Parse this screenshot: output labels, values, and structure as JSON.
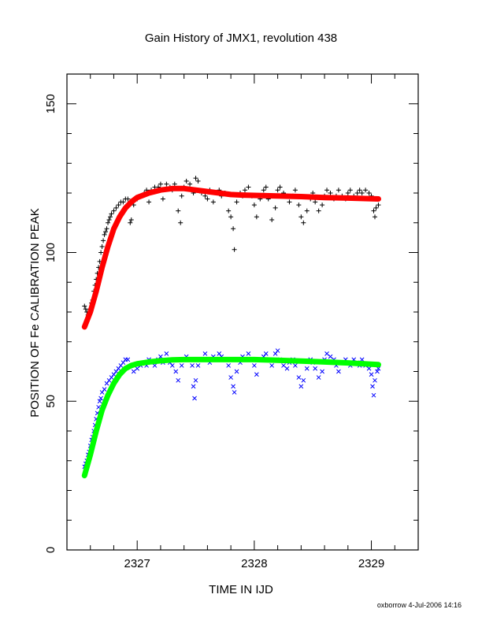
{
  "chart_data": {
    "type": "scatter",
    "title": "Gain History of JMX1, revolution 438",
    "xlabel": "TIME IN IJD",
    "ylabel": "POSITION OF Fe CALIBRATION PEAK",
    "footer": "oxborrow  4-Jul-2006 14:16",
    "xlim": [
      2326.4,
      2329.4
    ],
    "ylim": [
      0,
      160
    ],
    "x_ticks": [
      2327,
      2328,
      2329
    ],
    "y_ticks": [
      0,
      50,
      100,
      150
    ],
    "grid": false,
    "legend": "none",
    "series": [
      {
        "marker": "plus",
        "color": "#000000",
        "points": [
          [
            2326.55,
            82
          ],
          [
            2326.56,
            81
          ],
          [
            2326.57,
            80
          ],
          [
            2326.58,
            79
          ],
          [
            2326.59,
            80
          ],
          [
            2326.6,
            81
          ],
          [
            2326.61,
            83
          ],
          [
            2326.62,
            84
          ],
          [
            2326.63,
            87
          ],
          [
            2326.64,
            89
          ],
          [
            2326.65,
            91
          ],
          [
            2326.66,
            93
          ],
          [
            2326.67,
            95
          ],
          [
            2326.68,
            97
          ],
          [
            2326.69,
            100
          ],
          [
            2326.7,
            102
          ],
          [
            2326.71,
            104
          ],
          [
            2326.72,
            106
          ],
          [
            2326.73,
            107
          ],
          [
            2326.74,
            108
          ],
          [
            2326.75,
            110
          ],
          [
            2326.76,
            111
          ],
          [
            2326.77,
            112
          ],
          [
            2326.78,
            113
          ],
          [
            2326.8,
            114
          ],
          [
            2326.82,
            115
          ],
          [
            2326.84,
            116
          ],
          [
            2326.86,
            117
          ],
          [
            2326.88,
            117
          ],
          [
            2326.9,
            118
          ],
          [
            2326.92,
            118
          ],
          [
            2326.94,
            110
          ],
          [
            2326.95,
            111
          ],
          [
            2326.97,
            116
          ],
          [
            2327.0,
            118
          ],
          [
            2327.03,
            119
          ],
          [
            2327.06,
            120
          ],
          [
            2327.08,
            121
          ],
          [
            2327.1,
            117
          ],
          [
            2327.12,
            121
          ],
          [
            2327.15,
            122
          ],
          [
            2327.18,
            122
          ],
          [
            2327.2,
            123
          ],
          [
            2327.22,
            118
          ],
          [
            2327.25,
            123
          ],
          [
            2327.28,
            122
          ],
          [
            2327.3,
            121
          ],
          [
            2327.32,
            123
          ],
          [
            2327.35,
            114
          ],
          [
            2327.37,
            110
          ],
          [
            2327.38,
            119
          ],
          [
            2327.4,
            122
          ],
          [
            2327.42,
            124
          ],
          [
            2327.45,
            123
          ],
          [
            2327.48,
            120
          ],
          [
            2327.5,
            125
          ],
          [
            2327.52,
            124
          ],
          [
            2327.55,
            120
          ],
          [
            2327.58,
            119
          ],
          [
            2327.6,
            118
          ],
          [
            2327.62,
            121
          ],
          [
            2327.65,
            117
          ],
          [
            2327.68,
            120
          ],
          [
            2327.7,
            121
          ],
          [
            2327.72,
            119
          ],
          [
            2327.75,
            120
          ],
          [
            2327.78,
            114
          ],
          [
            2327.8,
            112
          ],
          [
            2327.82,
            108
          ],
          [
            2327.83,
            101
          ],
          [
            2327.85,
            117
          ],
          [
            2327.88,
            120
          ],
          [
            2327.9,
            119
          ],
          [
            2327.92,
            121
          ],
          [
            2327.95,
            122
          ],
          [
            2327.98,
            119
          ],
          [
            2328.0,
            116
          ],
          [
            2328.02,
            112
          ],
          [
            2328.05,
            118
          ],
          [
            2328.08,
            121
          ],
          [
            2328.1,
            122
          ],
          [
            2328.12,
            118
          ],
          [
            2328.15,
            111
          ],
          [
            2328.18,
            115
          ],
          [
            2328.2,
            121
          ],
          [
            2328.22,
            122
          ],
          [
            2328.25,
            120
          ],
          [
            2328.28,
            119
          ],
          [
            2328.3,
            117
          ],
          [
            2328.33,
            119
          ],
          [
            2328.35,
            121
          ],
          [
            2328.38,
            116
          ],
          [
            2328.4,
            112
          ],
          [
            2328.42,
            110
          ],
          [
            2328.45,
            114
          ],
          [
            2328.48,
            118
          ],
          [
            2328.5,
            120
          ],
          [
            2328.52,
            117
          ],
          [
            2328.55,
            114
          ],
          [
            2328.58,
            116
          ],
          [
            2328.6,
            119
          ],
          [
            2328.62,
            121
          ],
          [
            2328.65,
            120
          ],
          [
            2328.68,
            118
          ],
          [
            2328.7,
            119
          ],
          [
            2328.72,
            121
          ],
          [
            2328.75,
            119
          ],
          [
            2328.78,
            118
          ],
          [
            2328.8,
            120
          ],
          [
            2328.82,
            121
          ],
          [
            2328.85,
            119
          ],
          [
            2328.88,
            120
          ],
          [
            2328.9,
            121
          ],
          [
            2328.92,
            120
          ],
          [
            2328.95,
            121
          ],
          [
            2328.98,
            120
          ],
          [
            2329.0,
            119
          ],
          [
            2329.02,
            114
          ],
          [
            2329.03,
            112
          ],
          [
            2329.04,
            115
          ],
          [
            2329.06,
            116
          ]
        ]
      },
      {
        "marker": "cross",
        "color": "#0000ff",
        "points": [
          [
            2326.55,
            28
          ],
          [
            2326.56,
            29
          ],
          [
            2326.57,
            30
          ],
          [
            2326.58,
            32
          ],
          [
            2326.59,
            33
          ],
          [
            2326.6,
            35
          ],
          [
            2326.61,
            37
          ],
          [
            2326.62,
            38
          ],
          [
            2326.63,
            40
          ],
          [
            2326.64,
            42
          ],
          [
            2326.65,
            44
          ],
          [
            2326.66,
            46
          ],
          [
            2326.67,
            48
          ],
          [
            2326.68,
            50
          ],
          [
            2326.69,
            51
          ],
          [
            2326.7,
            53
          ],
          [
            2326.72,
            54
          ],
          [
            2326.74,
            56
          ],
          [
            2326.76,
            57
          ],
          [
            2326.78,
            58
          ],
          [
            2326.8,
            59
          ],
          [
            2326.82,
            60
          ],
          [
            2326.84,
            61
          ],
          [
            2326.86,
            62
          ],
          [
            2326.88,
            63
          ],
          [
            2326.9,
            64
          ],
          [
            2326.92,
            64
          ],
          [
            2326.95,
            62
          ],
          [
            2326.97,
            60
          ],
          [
            2327.0,
            61
          ],
          [
            2327.03,
            62
          ],
          [
            2327.05,
            63
          ],
          [
            2327.08,
            62
          ],
          [
            2327.1,
            64
          ],
          [
            2327.12,
            63
          ],
          [
            2327.15,
            62
          ],
          [
            2327.18,
            64
          ],
          [
            2327.2,
            65
          ],
          [
            2327.22,
            63
          ],
          [
            2327.25,
            66
          ],
          [
            2327.28,
            63
          ],
          [
            2327.3,
            62
          ],
          [
            2327.33,
            60
          ],
          [
            2327.35,
            57
          ],
          [
            2327.38,
            62
          ],
          [
            2327.4,
            64
          ],
          [
            2327.42,
            65
          ],
          [
            2327.45,
            64
          ],
          [
            2327.47,
            62
          ],
          [
            2327.48,
            55
          ],
          [
            2327.49,
            51
          ],
          [
            2327.5,
            57
          ],
          [
            2327.52,
            62
          ],
          [
            2327.55,
            64
          ],
          [
            2327.58,
            66
          ],
          [
            2327.6,
            64
          ],
          [
            2327.62,
            63
          ],
          [
            2327.65,
            65
          ],
          [
            2327.68,
            64
          ],
          [
            2327.7,
            66
          ],
          [
            2327.72,
            65
          ],
          [
            2327.75,
            64
          ],
          [
            2327.78,
            62
          ],
          [
            2327.8,
            58
          ],
          [
            2327.82,
            55
          ],
          [
            2327.83,
            53
          ],
          [
            2327.85,
            60
          ],
          [
            2327.88,
            63
          ],
          [
            2327.9,
            65
          ],
          [
            2327.92,
            64
          ],
          [
            2327.95,
            66
          ],
          [
            2327.98,
            64
          ],
          [
            2328.0,
            62
          ],
          [
            2328.02,
            59
          ],
          [
            2328.05,
            64
          ],
          [
            2328.08,
            65
          ],
          [
            2328.1,
            66
          ],
          [
            2328.12,
            64
          ],
          [
            2328.15,
            62
          ],
          [
            2328.18,
            66
          ],
          [
            2328.2,
            67
          ],
          [
            2328.22,
            64
          ],
          [
            2328.25,
            62
          ],
          [
            2328.28,
            61
          ],
          [
            2328.3,
            63
          ],
          [
            2328.33,
            64
          ],
          [
            2328.35,
            62
          ],
          [
            2328.38,
            58
          ],
          [
            2328.4,
            55
          ],
          [
            2328.42,
            57
          ],
          [
            2328.45,
            61
          ],
          [
            2328.48,
            64
          ],
          [
            2328.5,
            63
          ],
          [
            2328.52,
            61
          ],
          [
            2328.55,
            58
          ],
          [
            2328.58,
            60
          ],
          [
            2328.6,
            64
          ],
          [
            2328.62,
            66
          ],
          [
            2328.65,
            65
          ],
          [
            2328.68,
            64
          ],
          [
            2328.7,
            62
          ],
          [
            2328.72,
            60
          ],
          [
            2328.75,
            63
          ],
          [
            2328.78,
            64
          ],
          [
            2328.8,
            63
          ],
          [
            2328.82,
            62
          ],
          [
            2328.85,
            64
          ],
          [
            2328.88,
            63
          ],
          [
            2328.9,
            62
          ],
          [
            2328.92,
            64
          ],
          [
            2328.95,
            62
          ],
          [
            2328.98,
            61
          ],
          [
            2329.0,
            59
          ],
          [
            2329.01,
            55
          ],
          [
            2329.02,
            52
          ],
          [
            2329.03,
            57
          ],
          [
            2329.05,
            60
          ],
          [
            2329.06,
            61
          ]
        ]
      }
    ],
    "fits": [
      {
        "color": "#ff0000",
        "points": [
          [
            2326.55,
            75
          ],
          [
            2326.6,
            80
          ],
          [
            2326.65,
            87
          ],
          [
            2326.7,
            95
          ],
          [
            2326.75,
            102
          ],
          [
            2326.8,
            108
          ],
          [
            2326.85,
            112
          ],
          [
            2326.9,
            115
          ],
          [
            2326.95,
            117
          ],
          [
            2327.0,
            118.5
          ],
          [
            2327.1,
            120
          ],
          [
            2327.2,
            121
          ],
          [
            2327.3,
            121.5
          ],
          [
            2327.4,
            121.5
          ],
          [
            2327.5,
            121
          ],
          [
            2327.6,
            120.5
          ],
          [
            2327.7,
            120
          ],
          [
            2327.8,
            119.5
          ],
          [
            2327.9,
            119.3
          ],
          [
            2328.0,
            119.2
          ],
          [
            2328.2,
            119
          ],
          [
            2328.4,
            118.8
          ],
          [
            2328.6,
            118.5
          ],
          [
            2328.8,
            118.3
          ],
          [
            2329.06,
            118
          ]
        ]
      },
      {
        "color": "#00ff00",
        "points": [
          [
            2326.55,
            25
          ],
          [
            2326.6,
            32
          ],
          [
            2326.65,
            40
          ],
          [
            2326.7,
            47
          ],
          [
            2326.75,
            52
          ],
          [
            2326.8,
            56
          ],
          [
            2326.85,
            59
          ],
          [
            2326.9,
            61
          ],
          [
            2326.95,
            62
          ],
          [
            2327.0,
            62.6
          ],
          [
            2327.1,
            63.2
          ],
          [
            2327.2,
            63.6
          ],
          [
            2327.3,
            63.9
          ],
          [
            2327.4,
            64
          ],
          [
            2327.6,
            64
          ],
          [
            2327.8,
            64
          ],
          [
            2328.0,
            64
          ],
          [
            2328.2,
            63.8
          ],
          [
            2328.4,
            63.5
          ],
          [
            2328.6,
            63.2
          ],
          [
            2328.8,
            62.9
          ],
          [
            2329.06,
            62.3
          ]
        ]
      }
    ]
  }
}
